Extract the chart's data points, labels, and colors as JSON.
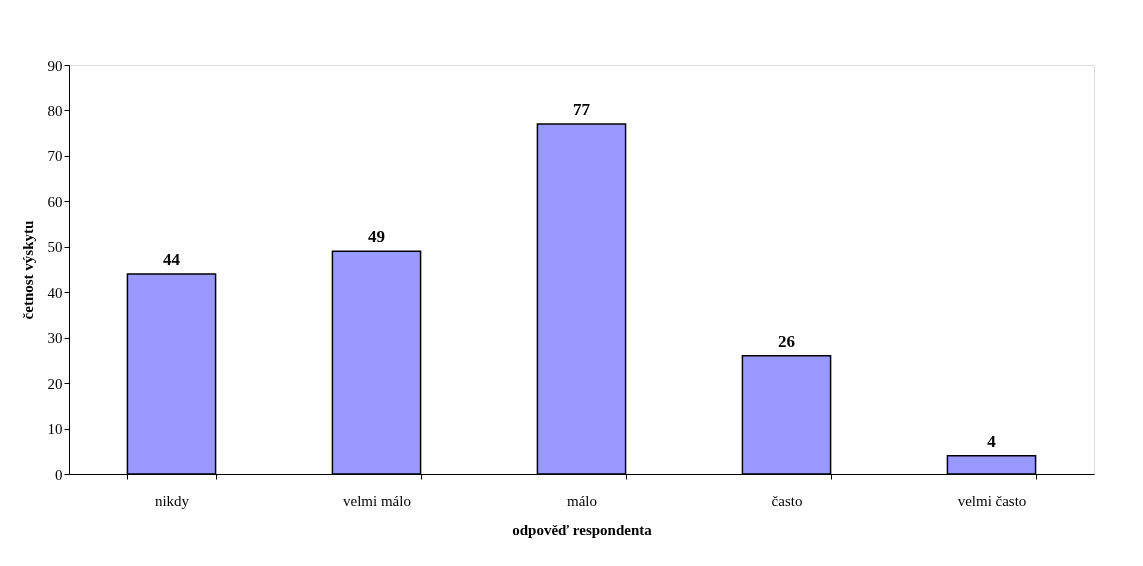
{
  "chart_data": {
    "type": "bar",
    "xlabel": "odpověď respondenta",
    "ylabel": "četnost výskytu",
    "categories": [
      "nikdy",
      "velmi málo",
      "málo",
      "často",
      "velmi často"
    ],
    "series": [
      {
        "color": "#9999ff",
        "values": [
          44,
          49,
          77,
          26,
          4
        ]
      }
    ],
    "ylim": [
      0,
      90
    ],
    "yticks": [
      0,
      10,
      20,
      30,
      40,
      50,
      60,
      70,
      80,
      90
    ],
    "grid": false,
    "legend": false,
    "data_labels": true
  }
}
